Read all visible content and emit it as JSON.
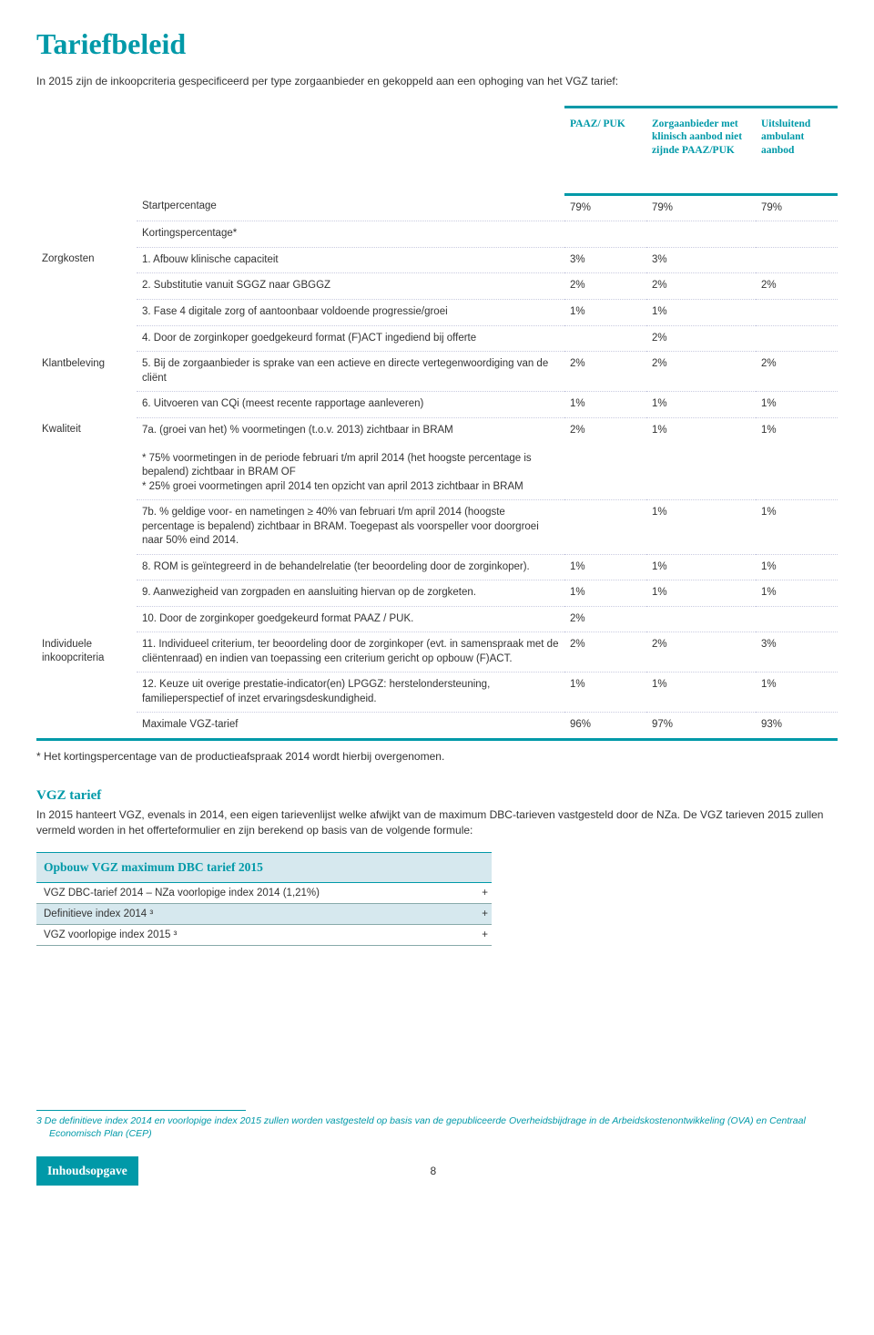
{
  "title": "Tariefbeleid",
  "intro": "In 2015 zijn de inkoopcriteria gespecificeerd per type zorgaanbieder en gekoppeld aan een ophoging van het VGZ tarief:",
  "headers": {
    "col2": "PAAZ/ PUK",
    "col3": "Zorgaanbieder met klinisch aanbod niet zijnde PAAZ/PUK",
    "col4": "Uitsluitend ambulant aanbod"
  },
  "categories": {
    "zorgkosten": "Zorgkosten",
    "klantbeleving": "Klantbeleving",
    "kwaliteit": "Kwaliteit",
    "individuele": "Individuele inkoopcriteria"
  },
  "rows": [
    {
      "cat": "",
      "label": "Startpercentage",
      "v": [
        "79%",
        "79%",
        "79%"
      ]
    },
    {
      "cat": "",
      "label": "Kortingspercentage*",
      "v": [
        "",
        "",
        ""
      ]
    },
    {
      "cat": "zorgkosten",
      "label": "1. Afbouw klinische capaciteit",
      "v": [
        "3%",
        "3%",
        ""
      ]
    },
    {
      "cat": "",
      "label": "2. Substitutie vanuit SGGZ naar GBGGZ",
      "v": [
        "2%",
        "2%",
        "2%"
      ]
    },
    {
      "cat": "",
      "label": "3. Fase 4 digitale zorg of aantoonbaar voldoende progressie/groei",
      "v": [
        "1%",
        "1%",
        ""
      ]
    },
    {
      "cat": "",
      "label": "4. Door de zorginkoper goedgekeurd format (F)ACT ingediend bij offerte",
      "v": [
        "",
        "2%",
        ""
      ]
    },
    {
      "cat": "klantbeleving",
      "label": "5. Bij de zorgaanbieder is sprake van een actieve en directe vertegenwoordiging van de cliënt",
      "v": [
        "2%",
        "2%",
        "2%"
      ]
    },
    {
      "cat": "",
      "label": "6. Uitvoeren van CQi (meest recente rapportage aanleveren)",
      "v": [
        "1%",
        "1%",
        "1%"
      ]
    },
    {
      "cat": "kwaliteit",
      "label": "7a. (groei van het) % voormetingen (t.o.v. 2013) zichtbaar in BRAM\n\n* 75% voormetingen in de periode februari t/m april 2014 (het hoogste percentage is bepalend) zichtbaar in BRAM  OF\n* 25% groei voormetingen april 2014 ten opzicht van april 2013 zichtbaar in BRAM",
      "v": [
        "2%",
        "1%",
        "1%"
      ]
    },
    {
      "cat": "",
      "label": "7b. % geldige voor- en nametingen ≥ 40% van februari t/m april 2014 (hoogste percentage is bepalend) zichtbaar in BRAM. Toegepast als voorspeller voor doorgroei naar 50% eind 2014.",
      "v": [
        "",
        "1%",
        "1%"
      ]
    },
    {
      "cat": "",
      "label": "8. ROM is geïntegreerd in de behandelrelatie (ter beoordeling door de zorginkoper).",
      "v": [
        "1%",
        "1%",
        "1%"
      ]
    },
    {
      "cat": "",
      "label": "9. Aanwezigheid van zorgpaden en aansluiting hiervan op de zorgketen.",
      "v": [
        "1%",
        "1%",
        "1%"
      ]
    },
    {
      "cat": "",
      "label": "10. Door de zorginkoper goedgekeurd format PAAZ / PUK.",
      "v": [
        "2%",
        "",
        ""
      ]
    },
    {
      "cat": "individuele",
      "label": "11. Individueel criterium, ter beoordeling door de zorginkoper (evt. in samenspraak met de cliëntenraad) en indien van toepassing een criterium gericht op opbouw (F)ACT.",
      "v": [
        "2%",
        "2%",
        "3%"
      ]
    },
    {
      "cat": "",
      "label": "12. Keuze uit overige prestatie-indicator(en) LPGGZ: herstelondersteuning, familieperspectief of inzet ervaringsdeskundigheid.",
      "v": [
        "1%",
        "1%",
        "1%"
      ]
    },
    {
      "cat": "",
      "label": "Maximale VGZ-tarief",
      "v": [
        "96%",
        "97%",
        "93%"
      ],
      "last": true
    }
  ],
  "starNote": "* Het kortingspercentage van de productieafspraak 2014 wordt hierbij overgenomen.",
  "section2": {
    "title": "VGZ tarief",
    "intro": "In 2015 hanteert VGZ, evenals in 2014, een eigen tarievenlijst welke afwijkt van de maximum DBC-tarieven vastgesteld door de NZa. De VGZ tarieven 2015 zullen vermeld worden in het offerteformulier en zijn berekend op basis van de volgende formule:",
    "tableHeader": "Opbouw VGZ maximum DBC tarief 2015",
    "rows": [
      {
        "label": "VGZ DBC-tarief 2014 – NZa voorlopige index 2014 (1,21%)",
        "alt": false
      },
      {
        "label": "Definitieve index 2014 ³",
        "alt": true
      },
      {
        "label": "VGZ voorlopige index 2015 ³",
        "alt": false
      }
    ],
    "plus": "+"
  },
  "footnote3": "3   De definitieve index 2014 en voorlopige index 2015 zullen worden vastgesteld op basis van de gepubliceerde Overheidsbijdrage in de Arbeidskostenontwikkeling (OVA)  en Centraal Economisch Plan (CEP)",
  "tocLabel": "Inhoudsopgave",
  "pageNumber": "8"
}
